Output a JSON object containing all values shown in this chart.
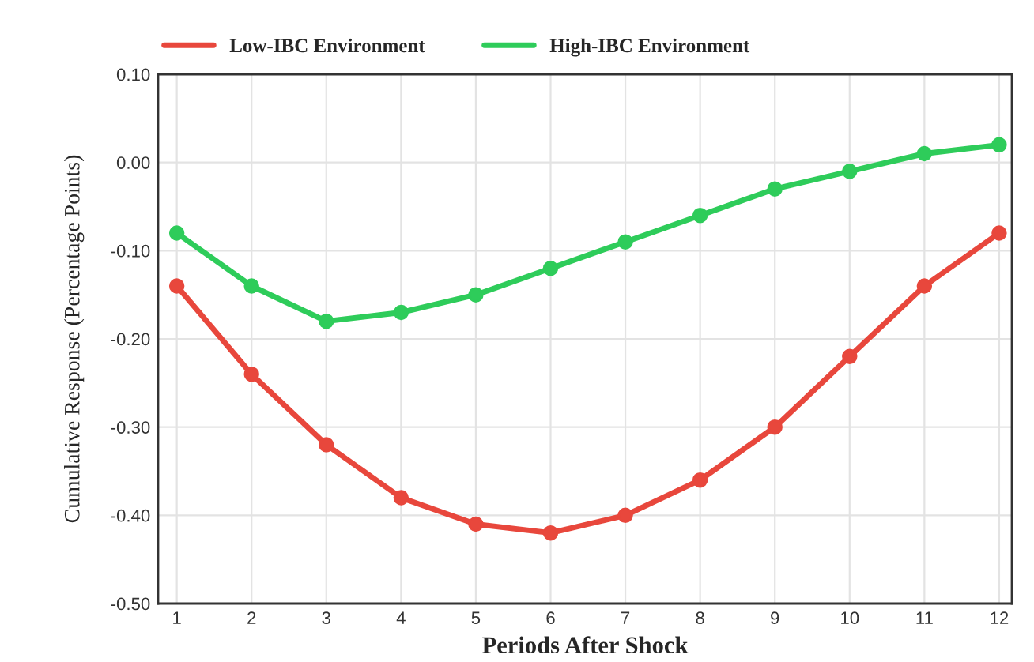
{
  "chart_data": {
    "type": "line",
    "xlabel": "Periods After Shock",
    "ylabel": "Cumulative Response (Percentage Points)",
    "categories": [
      "1",
      "2",
      "3",
      "4",
      "5",
      "6",
      "7",
      "8",
      "9",
      "10",
      "11",
      "12"
    ],
    "series": [
      {
        "name": "Low-IBC Environment",
        "color": "#e8473c",
        "values": [
          -0.14,
          -0.24,
          -0.32,
          -0.38,
          -0.41,
          -0.42,
          -0.4,
          -0.36,
          -0.3,
          -0.22,
          -0.14,
          -0.08
        ]
      },
      {
        "name": "High-IBC Environment",
        "color": "#2ecc5a",
        "values": [
          -0.08,
          -0.14,
          -0.18,
          -0.17,
          -0.15,
          -0.12,
          -0.09,
          -0.06,
          -0.03,
          -0.01,
          0.01,
          0.02
        ]
      }
    ],
    "ylim": [
      -0.5,
      0.1
    ],
    "yticks": [
      {
        "value": -0.5,
        "label": "-0.50"
      },
      {
        "value": -0.4,
        "label": "-0.40"
      },
      {
        "value": -0.3,
        "label": "-0.30"
      },
      {
        "value": -0.2,
        "label": "-0.20"
      },
      {
        "value": -0.1,
        "label": "-0.10"
      },
      {
        "value": 0,
        "label": "0.00"
      },
      {
        "value": 0.1,
        "label": "0.10"
      }
    ],
    "grid": true,
    "legend": "top",
    "marker": "circle",
    "line_style": "solid"
  }
}
